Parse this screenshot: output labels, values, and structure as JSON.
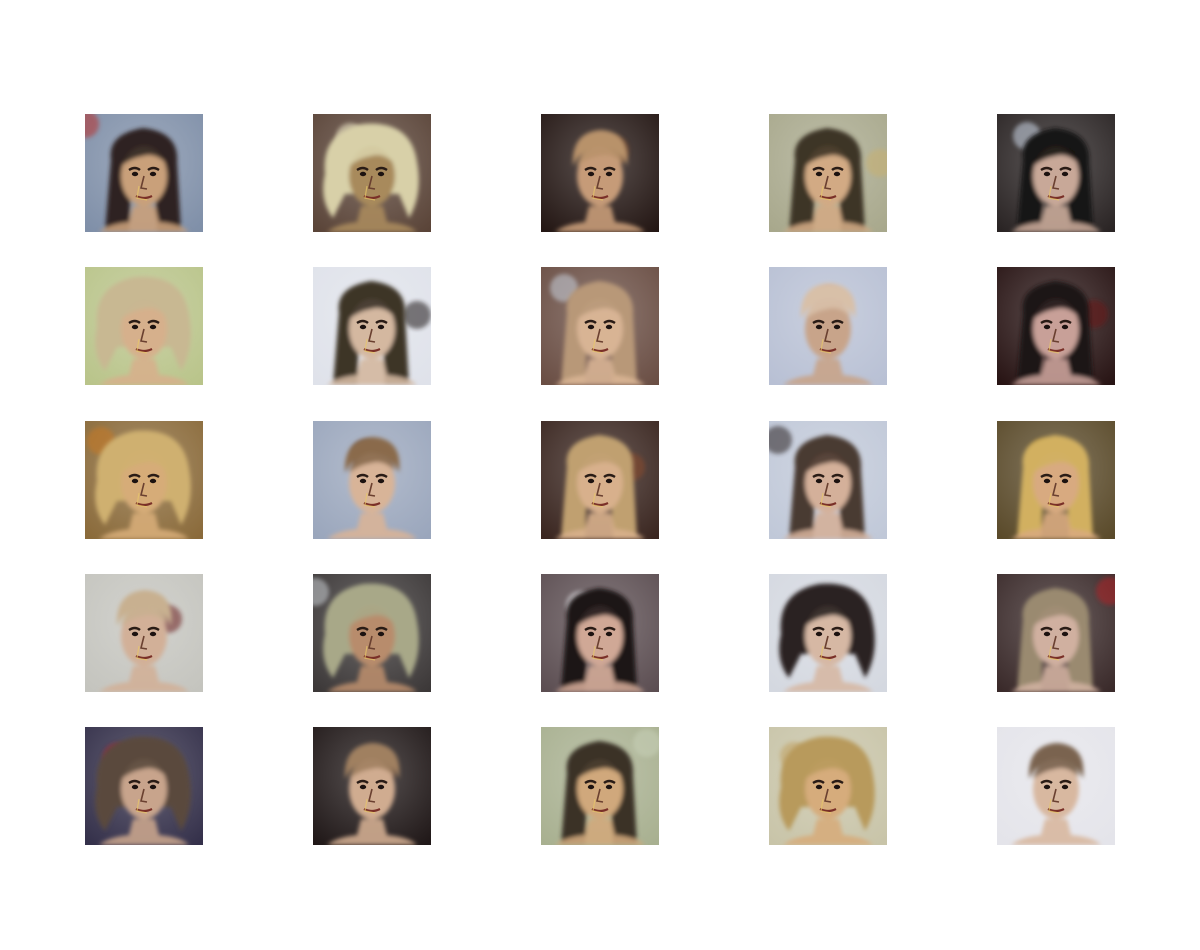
{
  "figure": {
    "rows": 5,
    "columns": 5,
    "samples": [
      {
        "bg": "#7f8fa8",
        "hair": "#2e2420",
        "skin": "#c9a07a",
        "accent": "#b8302d",
        "hair_style": "long"
      },
      {
        "bg": "#5a4438",
        "hair": "#d8d0a8",
        "skin": "#a88a5c",
        "accent": "#efe8c8",
        "hair_style": "wild"
      },
      {
        "bg": "#241714",
        "hair": "#b8926a",
        "skin": "#c69b78",
        "accent": "#7a4a2c",
        "hair_style": "short"
      },
      {
        "bg": "#a8a88c",
        "hair": "#3e3426",
        "skin": "#d2aa84",
        "accent": "#c8b070",
        "hair_style": "long"
      },
      {
        "bg": "#2a2424",
        "hair": "#141212",
        "skin": "#c8a898",
        "accent": "#cdd8e8",
        "hair_style": "long"
      },
      {
        "bg": "#b9c48a",
        "hair": "#c8b892",
        "skin": "#d6b08c",
        "accent": "#6c9a2c",
        "hair_style": "wild"
      },
      {
        "bg": "#dfe2ea",
        "hair": "#3c3428",
        "skin": "#d4b8a0",
        "accent": "#1c1814",
        "hair_style": "long"
      },
      {
        "bg": "#6a4e44",
        "hair": "#b89878",
        "skin": "#d8b494",
        "accent": "#c8d0dc",
        "hair_style": "long"
      },
      {
        "bg": "#b8c0d4",
        "hair": "#d8c0a8",
        "skin": "#c8a48a",
        "accent": "#b02420",
        "hair_style": "short"
      },
      {
        "bg": "#281414",
        "hair": "#1c1414",
        "skin": "#c8a098",
        "accent": "#6a1418",
        "hair_style": "long"
      },
      {
        "bg": "#8a6a3a",
        "hair": "#cfb070",
        "skin": "#d6ac78",
        "accent": "#c87820",
        "hair_style": "wild"
      },
      {
        "bg": "#9aa6bc",
        "hair": "#8a6a4c",
        "skin": "#d8b498",
        "accent": "#3a1c18",
        "hair_style": "short"
      },
      {
        "bg": "#3a2620",
        "hair": "#c0a070",
        "skin": "#d8b08c",
        "accent": "#8a4a2a",
        "hair_style": "long"
      },
      {
        "bg": "#c0c8d8",
        "hair": "#4a3a30",
        "skin": "#d4b09a",
        "accent": "#2c2420",
        "hair_style": "long"
      },
      {
        "bg": "#5a4a2a",
        "hair": "#d2b060",
        "skin": "#d8aa80",
        "accent": "#c89828",
        "hair_style": "long"
      },
      {
        "bg": "#c4c4be",
        "hair": "#c8b090",
        "skin": "#d2b098",
        "accent": "#6a1c1c",
        "hair_style": "short"
      },
      {
        "bg": "#3c3838",
        "hair": "#a8a888",
        "skin": "#b88c6c",
        "accent": "#c8ccd0",
        "hair_style": "wild"
      },
      {
        "bg": "#5c4e52",
        "hair": "#1e1818",
        "skin": "#d0a896",
        "accent": "#e8e8ec",
        "hair_style": "long"
      },
      {
        "bg": "#d4d8e0",
        "hair": "#2a2220",
        "skin": "#d6b8a4",
        "accent": "#f0f0f2",
        "hair_style": "wild"
      },
      {
        "bg": "#3a2a2a",
        "hair": "#9a8a70",
        "skin": "#d0b0a0",
        "accent": "#b02028",
        "hair_style": "long"
      },
      {
        "bg": "#34304a",
        "hair": "#5a4a3c",
        "skin": "#c8a48c",
        "accent": "#b02030",
        "hair_style": "wild"
      },
      {
        "bg": "#201818",
        "hair": "#a08060",
        "skin": "#d0ac90",
        "accent": "#5a3a2c",
        "hair_style": "short"
      },
      {
        "bg": "#a8b090",
        "hair": "#3a3026",
        "skin": "#d0a87c",
        "accent": "#c8d0b8",
        "hair_style": "long"
      },
      {
        "bg": "#c8c4a8",
        "hair": "#b89a5c",
        "skin": "#d6ac7c",
        "accent": "#c0a060",
        "hair_style": "wild"
      },
      {
        "bg": "#e4e4ea",
        "hair": "#7a6450",
        "skin": "#d8b8a0",
        "accent": "#9aa04c",
        "hair_style": "short"
      }
    ]
  }
}
